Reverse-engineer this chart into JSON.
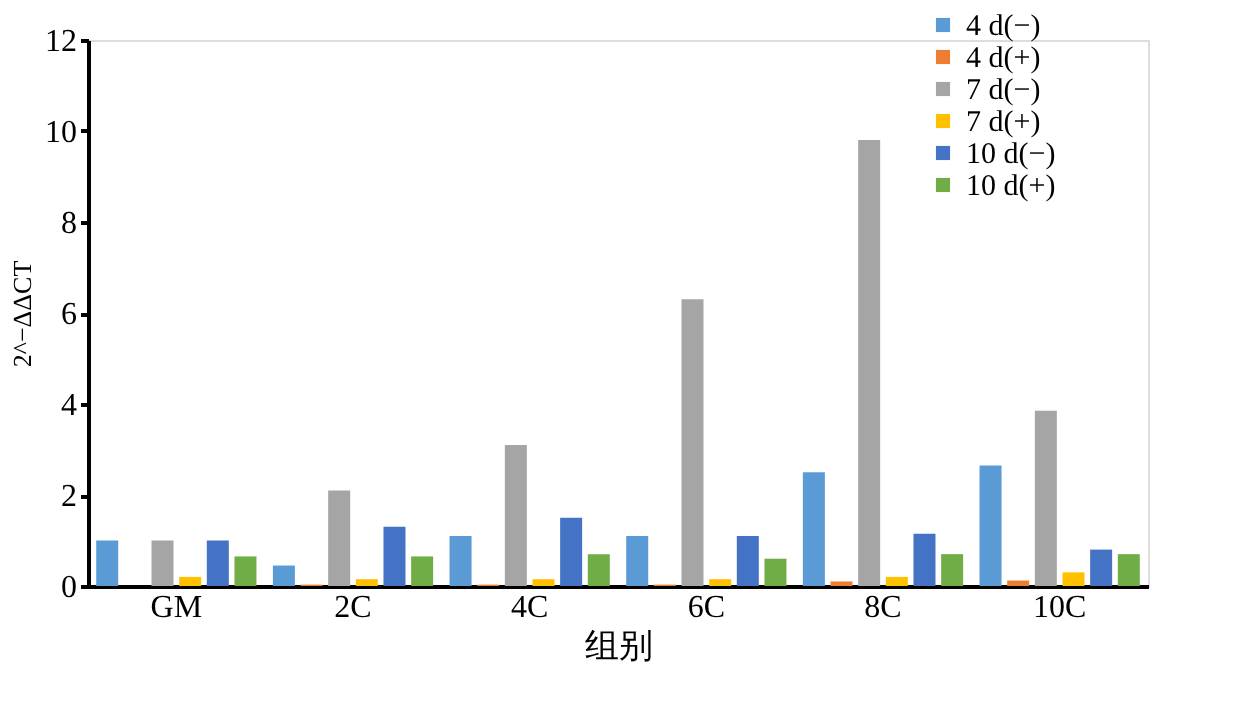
{
  "chart_data": {
    "type": "bar",
    "xlabel": "组别",
    "ylabel": "2^−ΔΔCT",
    "categories": [
      "GM",
      "2C",
      "4C",
      "6C",
      "8C",
      "10C"
    ],
    "series": [
      {
        "name": "4 d(−)",
        "color": "#5b9bd5",
        "values": [
          1.0,
          0.45,
          1.1,
          1.1,
          2.5,
          2.65
        ]
      },
      {
        "name": "4 d(+)",
        "color": "#ed7d31",
        "values": [
          0,
          0.03,
          0.03,
          0.03,
          0.1,
          0.12
        ]
      },
      {
        "name": "7 d(−)",
        "color": "#a5a5a5",
        "values": [
          1.0,
          2.1,
          3.1,
          6.3,
          9.8,
          3.85
        ]
      },
      {
        "name": "7 d(+)",
        "color": "#ffc000",
        "values": [
          0.2,
          0.15,
          0.15,
          0.15,
          0.2,
          0.3
        ]
      },
      {
        "name": "10 d(−)",
        "color": "#4472c4",
        "values": [
          1.0,
          1.3,
          1.5,
          1.1,
          1.15,
          0.8
        ]
      },
      {
        "name": "10 d(+)",
        "color": "#70ad47",
        "values": [
          0.65,
          0.65,
          0.7,
          0.6,
          0.7,
          0.7
        ]
      }
    ],
    "ylim": [
      0,
      12
    ],
    "yticks": [
      0,
      2,
      4,
      6,
      8,
      10,
      12
    ],
    "grid": false,
    "legend": "top right"
  }
}
